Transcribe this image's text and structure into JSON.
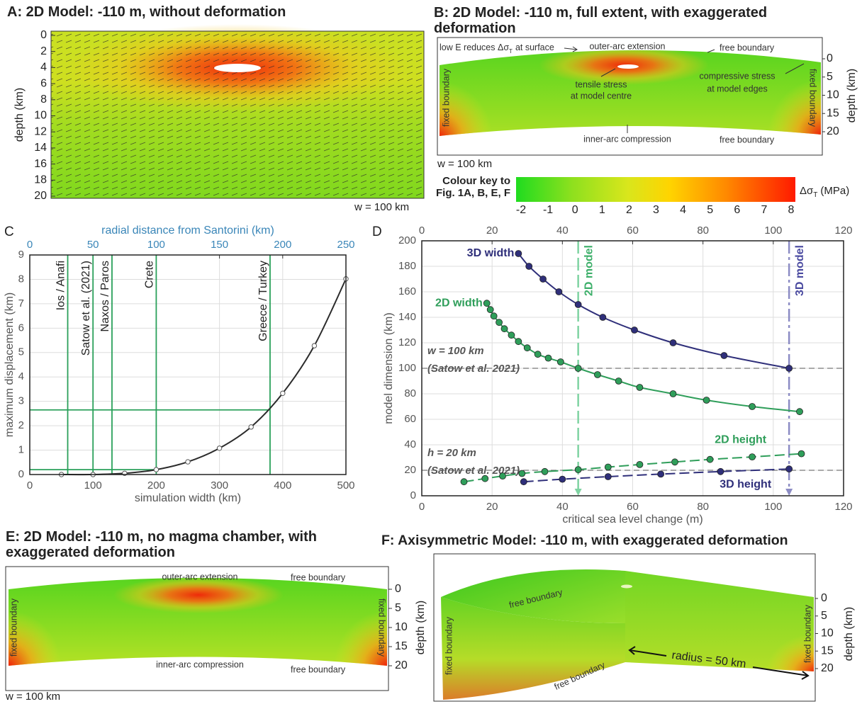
{
  "panels": {
    "a": {
      "title": "A: 2D Model: -110 m, without deformation",
      "y_label": "depth (km)",
      "ylim": [
        0,
        20
      ],
      "yticks": [
        0,
        2,
        4,
        6,
        8,
        10,
        12,
        14,
        16,
        18,
        20
      ],
      "width_note": "w = 100 km"
    },
    "b": {
      "title": "B: 2D Model: -110 m, full extent, with exaggerated deformation",
      "y_label": "depth (km)",
      "ylim": [
        0,
        20
      ],
      "yticks": [
        0,
        5,
        10,
        15,
        20
      ],
      "width_note": "w = 100 km",
      "low_e": [
        "low E reduces Δσ",
        "T",
        "at surface"
      ],
      "outer_arc": "outer-arc extension",
      "free_top": "free boundary",
      "tensile": [
        "tensile stress",
        "at model centre"
      ],
      "compressive": [
        "compressive stress",
        "at model edges"
      ],
      "fixed_left": "fixed boundary",
      "fixed_right": "fixed boundary",
      "inner_arc": "inner-arc compression",
      "free_bottom": "free boundary"
    },
    "e": {
      "title": "E: 2D Model: -110 m, no magma chamber, with exaggerated deformation",
      "y_label": "depth (km)",
      "ylim": [
        0,
        20
      ],
      "yticks": [
        0,
        5,
        10,
        15,
        20
      ],
      "width_note": "w = 100 km",
      "outer_arc": "outer-arc extension",
      "free_top": "free boundary",
      "fixed_left": "fixed boundary",
      "fixed_right": "fixed boundary",
      "inner_arc": "inner-arc compression",
      "free_bottom": "free boundary"
    },
    "f": {
      "title": "F: Axisymmetric Model: -110 m, with exaggerated deformation",
      "y_label": "depth (km)",
      "ylim": [
        0,
        20
      ],
      "yticks": [
        0,
        5,
        10,
        15,
        20
      ],
      "free_top": "free boundary",
      "free_bottom": "free boundary",
      "fixed_left": "fixed boundary",
      "fixed_right": "fixed boundary",
      "radius": "radius = 50 km"
    }
  },
  "colour_key": {
    "title_lines": [
      "Colour key to",
      "Fig. 1A, B, E, F"
    ],
    "lim": [
      -2,
      8
    ],
    "ticks": [
      -2,
      -1,
      0,
      1,
      2,
      3,
      4,
      5,
      6,
      7,
      8
    ],
    "quantity": "Δσ",
    "subscript": "T",
    "unit": "(MPa)"
  },
  "chart_data": [
    {
      "type": "line",
      "panel_label": "C",
      "x_label": "simulation width (km)",
      "y_label": "maximum displacement (km)",
      "x2_label": "radial distance from Santorini (km)",
      "x": [
        50,
        100,
        150,
        200,
        250,
        300,
        350,
        400,
        450,
        500
      ],
      "values": [
        0,
        0,
        0.05,
        0.2,
        0.52,
        1.08,
        1.95,
        3.33,
        5.28,
        8.02
      ],
      "color": "#2b2b2b",
      "xlim": [
        0,
        500
      ],
      "xticks": [
        0,
        100,
        200,
        300,
        400,
        500
      ],
      "ylim": [
        0,
        9
      ],
      "yticks": [
        0,
        1,
        2,
        3,
        4,
        5,
        6,
        7,
        8,
        9
      ],
      "x2lim": [
        0,
        250
      ],
      "x2ticks": [
        0,
        50,
        100,
        150,
        200,
        250
      ],
      "x2_color": "#3a86b8",
      "grid": true,
      "reference_color": "#2aa05a",
      "vertical_refs": [
        {
          "label": "Ios / Anafi",
          "x": 60
        },
        {
          "label": "Satow et al. (2021)",
          "x": 100
        },
        {
          "label": "Naxos / Paros",
          "x": 130
        },
        {
          "label": "Crete",
          "x": 200
        },
        {
          "label": "Greece / Turkey",
          "x": 380
        }
      ],
      "horizontal_refs": [
        {
          "y": 0.2,
          "to_x": 200
        },
        {
          "y": 2.65,
          "to_x": 380
        }
      ]
    },
    {
      "type": "line",
      "panel_label": "D",
      "x_label": "critical sea level change (m)",
      "y_label": "model dimension (km)",
      "xlim": [
        0,
        120
      ],
      "xticks": [
        0,
        20,
        40,
        60,
        80,
        100,
        120
      ],
      "x2ticks": [
        0,
        20,
        40,
        60,
        80,
        100,
        120
      ],
      "ylim": [
        0,
        200
      ],
      "yticks": [
        0,
        20,
        40,
        60,
        80,
        100,
        120,
        140,
        160,
        180,
        200
      ],
      "grid": true,
      "series": [
        {
          "name": "3D width",
          "color": "#2f2f7a",
          "dashed": false,
          "x": [
            27.5,
            30.5,
            34.5,
            39,
            44.5,
            51.5,
            60.5,
            71.5,
            86,
            104.5
          ],
          "values": [
            190,
            180,
            170,
            160,
            150,
            140,
            130,
            120,
            110,
            100
          ]
        },
        {
          "name": "2D width",
          "color": "#2f9e5a",
          "dashed": false,
          "x": [
            18.5,
            19.5,
            20.5,
            22,
            23.5,
            25.5,
            27.5,
            30,
            33,
            36,
            39.5,
            44.5,
            50,
            56,
            62,
            71.5,
            81,
            94,
            107.5
          ],
          "values": [
            151,
            146,
            141,
            136,
            131,
            126,
            121,
            116,
            111,
            108,
            105,
            100,
            95,
            90,
            85,
            80,
            75,
            70,
            66
          ]
        },
        {
          "name": "2D height",
          "color": "#2f9e5a",
          "dashed": true,
          "x": [
            12,
            18,
            23,
            28.5,
            35,
            44.5,
            53,
            62,
            72,
            82,
            94,
            108
          ],
          "values": [
            11,
            13.5,
            15.5,
            17.5,
            19,
            20.5,
            22.5,
            24.5,
            26.5,
            28.5,
            30.5,
            33
          ]
        },
        {
          "name": "3D height",
          "color": "#2f2f7a",
          "dashed": true,
          "x": [
            29,
            40,
            53,
            68,
            85,
            104.5
          ],
          "values": [
            11,
            13,
            15,
            17,
            19,
            21
          ]
        }
      ],
      "horizontal_refs": [
        {
          "y": 100,
          "label": [
            "w = 100 km",
            "(Satow et al. 2021)"
          ]
        },
        {
          "y": 20,
          "label": [
            "h = 20 km",
            "(Satow et al. 2021)"
          ]
        }
      ],
      "vertical_refs": [
        {
          "x": 44.5,
          "label": "2D model",
          "color": "#7fd3a2",
          "label_color": "#3daf6a"
        },
        {
          "x": 104.5,
          "label": "3D model",
          "color": "#8c8cc4",
          "label_color": "#4a4aa0"
        }
      ]
    }
  ]
}
